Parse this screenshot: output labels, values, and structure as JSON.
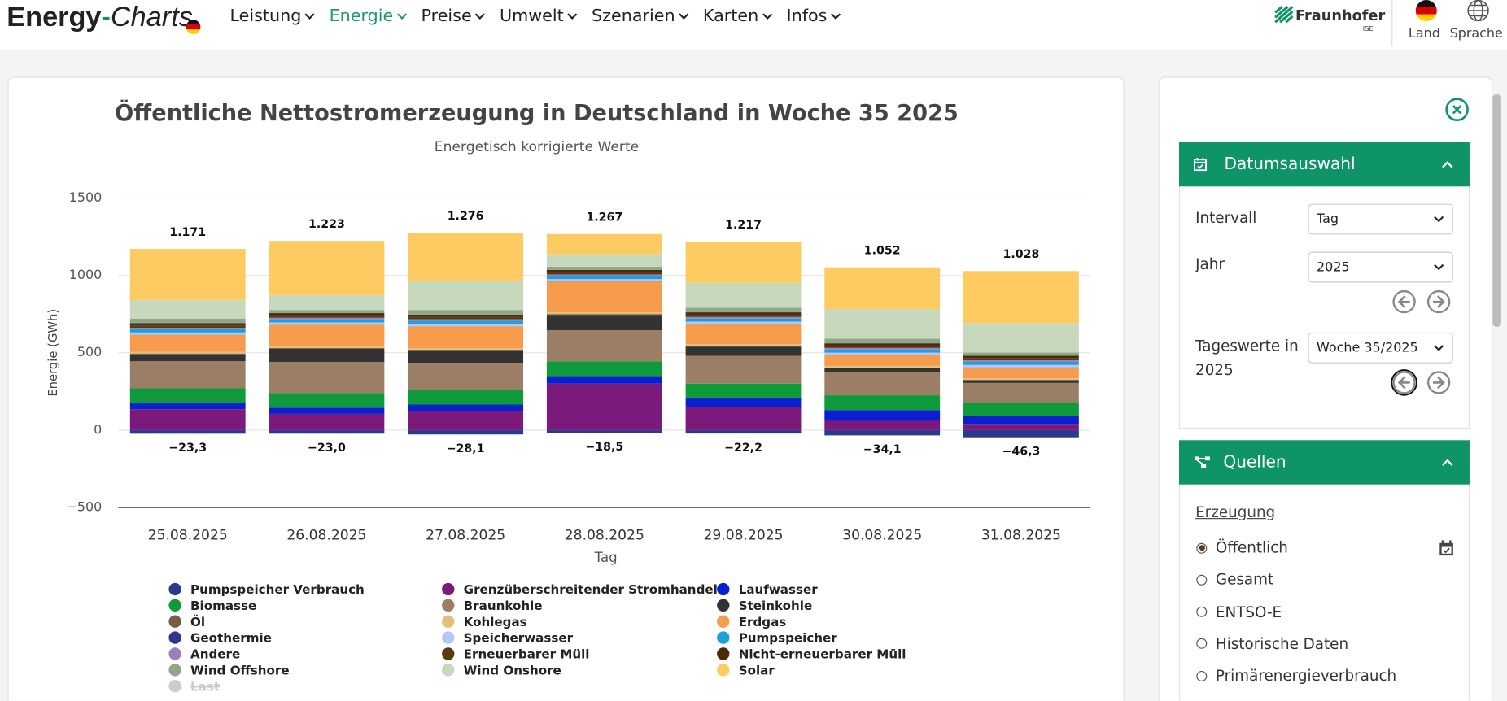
{
  "header": {
    "logo": {
      "bold": "Energy",
      "dash": "-",
      "italic": "Charts"
    },
    "nav": [
      "Leistung",
      "Energie",
      "Preise",
      "Umwelt",
      "Szenarien",
      "Karten",
      "Infos"
    ],
    "active_nav": 1,
    "brand": "Fraunhofer",
    "brand_sub": "ISE",
    "actions": [
      "Land",
      "Sprache"
    ]
  },
  "chart_data": {
    "type": "stacked_bar",
    "title": "Öffentliche Nettostromerzeugung in Deutschland in Woche 35 2025",
    "subtitle": "Energetisch korrigierte Werte",
    "xlabel": "Tag",
    "ylabel": "Energie (GWh)",
    "categories": [
      "25.08.2025",
      "26.08.2025",
      "27.08.2025",
      "28.08.2025",
      "29.08.2025",
      "30.08.2025",
      "31.08.2025"
    ],
    "ylim": [
      -500,
      1500
    ],
    "yticks": [
      {
        "value": -500,
        "label": "−500"
      },
      0,
      500,
      1000,
      1500
    ],
    "grid": true,
    "totals": [
      1171,
      1223,
      1276,
      1267,
      1217,
      1052,
      1028
    ],
    "total_labels": [
      "1.171",
      "1.223",
      "1.276",
      "1.267",
      "1.217",
      "1.052",
      "1.028"
    ],
    "negative_totals": [
      -23.3,
      -23.0,
      -28.1,
      -18.5,
      -22.2,
      -34.1,
      -46.3
    ],
    "negative_total_labels": [
      "−23,3",
      "−23,0",
      "−28,1",
      "−18,5",
      "−22,2",
      "−34,1",
      "−46,3"
    ],
    "series": [
      {
        "name": "Pumpspeicher Verbrauch",
        "color": "#2b3a8f",
        "values": [
          -23.3,
          -23.0,
          -28.1,
          -18.5,
          -22.2,
          -34.1,
          -46.3
        ]
      },
      {
        "name": "Grenzüberschreitender Stromhandel",
        "color": "#7b1a7b",
        "values": [
          135,
          105,
          125,
          300,
          150,
          60,
          40
        ]
      },
      {
        "name": "Laufwasser",
        "color": "#0a1fd0",
        "values": [
          40,
          40,
          40,
          50,
          60,
          70,
          50
        ]
      },
      {
        "name": "Biomasse",
        "color": "#0d9b3c",
        "values": [
          95,
          95,
          95,
          95,
          90,
          95,
          85
        ]
      },
      {
        "name": "Braunkohle",
        "color": "#9a7f66",
        "values": [
          175,
          200,
          175,
          200,
          180,
          150,
          130
        ]
      },
      {
        "name": "Steinkohle",
        "color": "#333333",
        "values": [
          45,
          85,
          80,
          100,
          60,
          25,
          15
        ]
      },
      {
        "name": "Öl",
        "color": "#7a5c45",
        "values": [
          5,
          5,
          5,
          5,
          5,
          5,
          5
        ]
      },
      {
        "name": "Kohlegas",
        "color": "#e0c07a",
        "values": [
          10,
          10,
          10,
          10,
          10,
          10,
          10
        ]
      },
      {
        "name": "Erdgas",
        "color": "#f79b4c",
        "values": [
          110,
          140,
          140,
          200,
          130,
          70,
          70
        ]
      },
      {
        "name": "Geothermie",
        "color": "#2e3590",
        "values": [
          1,
          1,
          1,
          1,
          1,
          1,
          1
        ]
      },
      {
        "name": "Speicherwasser",
        "color": "#b4c8f5",
        "values": [
          15,
          15,
          15,
          15,
          15,
          15,
          15
        ]
      },
      {
        "name": "Pumpspeicher",
        "color": "#1aa0e0",
        "values": [
          20,
          20,
          20,
          20,
          20,
          20,
          20
        ]
      },
      {
        "name": "Andere",
        "color": "#9b7fbf",
        "values": [
          10,
          10,
          10,
          10,
          10,
          10,
          10
        ]
      },
      {
        "name": "Erneuerbarer Müll",
        "color": "#5a3a12",
        "values": [
          15,
          15,
          15,
          15,
          15,
          15,
          15
        ]
      },
      {
        "name": "Nicht-erneuerbarer Müll",
        "color": "#4a2a0a",
        "values": [
          15,
          15,
          15,
          15,
          15,
          15,
          15
        ]
      },
      {
        "name": "Wind Offshore",
        "color": "#8fa88a",
        "values": [
          30,
          20,
          30,
          20,
          30,
          30,
          20
        ]
      },
      {
        "name": "Wind Onshore",
        "color": "#c6d9bd",
        "values": [
          120,
          95,
          190,
          80,
          160,
          190,
          190
        ]
      },
      {
        "name": "Solar",
        "color": "#fdcb62",
        "values": [
          330,
          352,
          310,
          131,
          266,
          271,
          337
        ]
      },
      {
        "name": "Last",
        "color": "#cccccc",
        "values": [
          null,
          null,
          null,
          null,
          null,
          null,
          null
        ],
        "visible": false
      }
    ]
  },
  "sidebar": {
    "date_panel": {
      "title": "Datumsauswahl",
      "fields": [
        {
          "label": "Intervall",
          "value": "Tag"
        },
        {
          "label": "Jahr",
          "value": "2025"
        },
        {
          "label": "Tageswerte in 2025",
          "value": "Woche 35/2025"
        }
      ]
    },
    "sources_panel": {
      "title": "Quellen",
      "section": "Erzeugung",
      "options": [
        "Öffentlich",
        "Gesamt",
        "ENTSO-E",
        "Historische Daten",
        "Primärenergieverbrauch"
      ],
      "selected": 0
    }
  }
}
